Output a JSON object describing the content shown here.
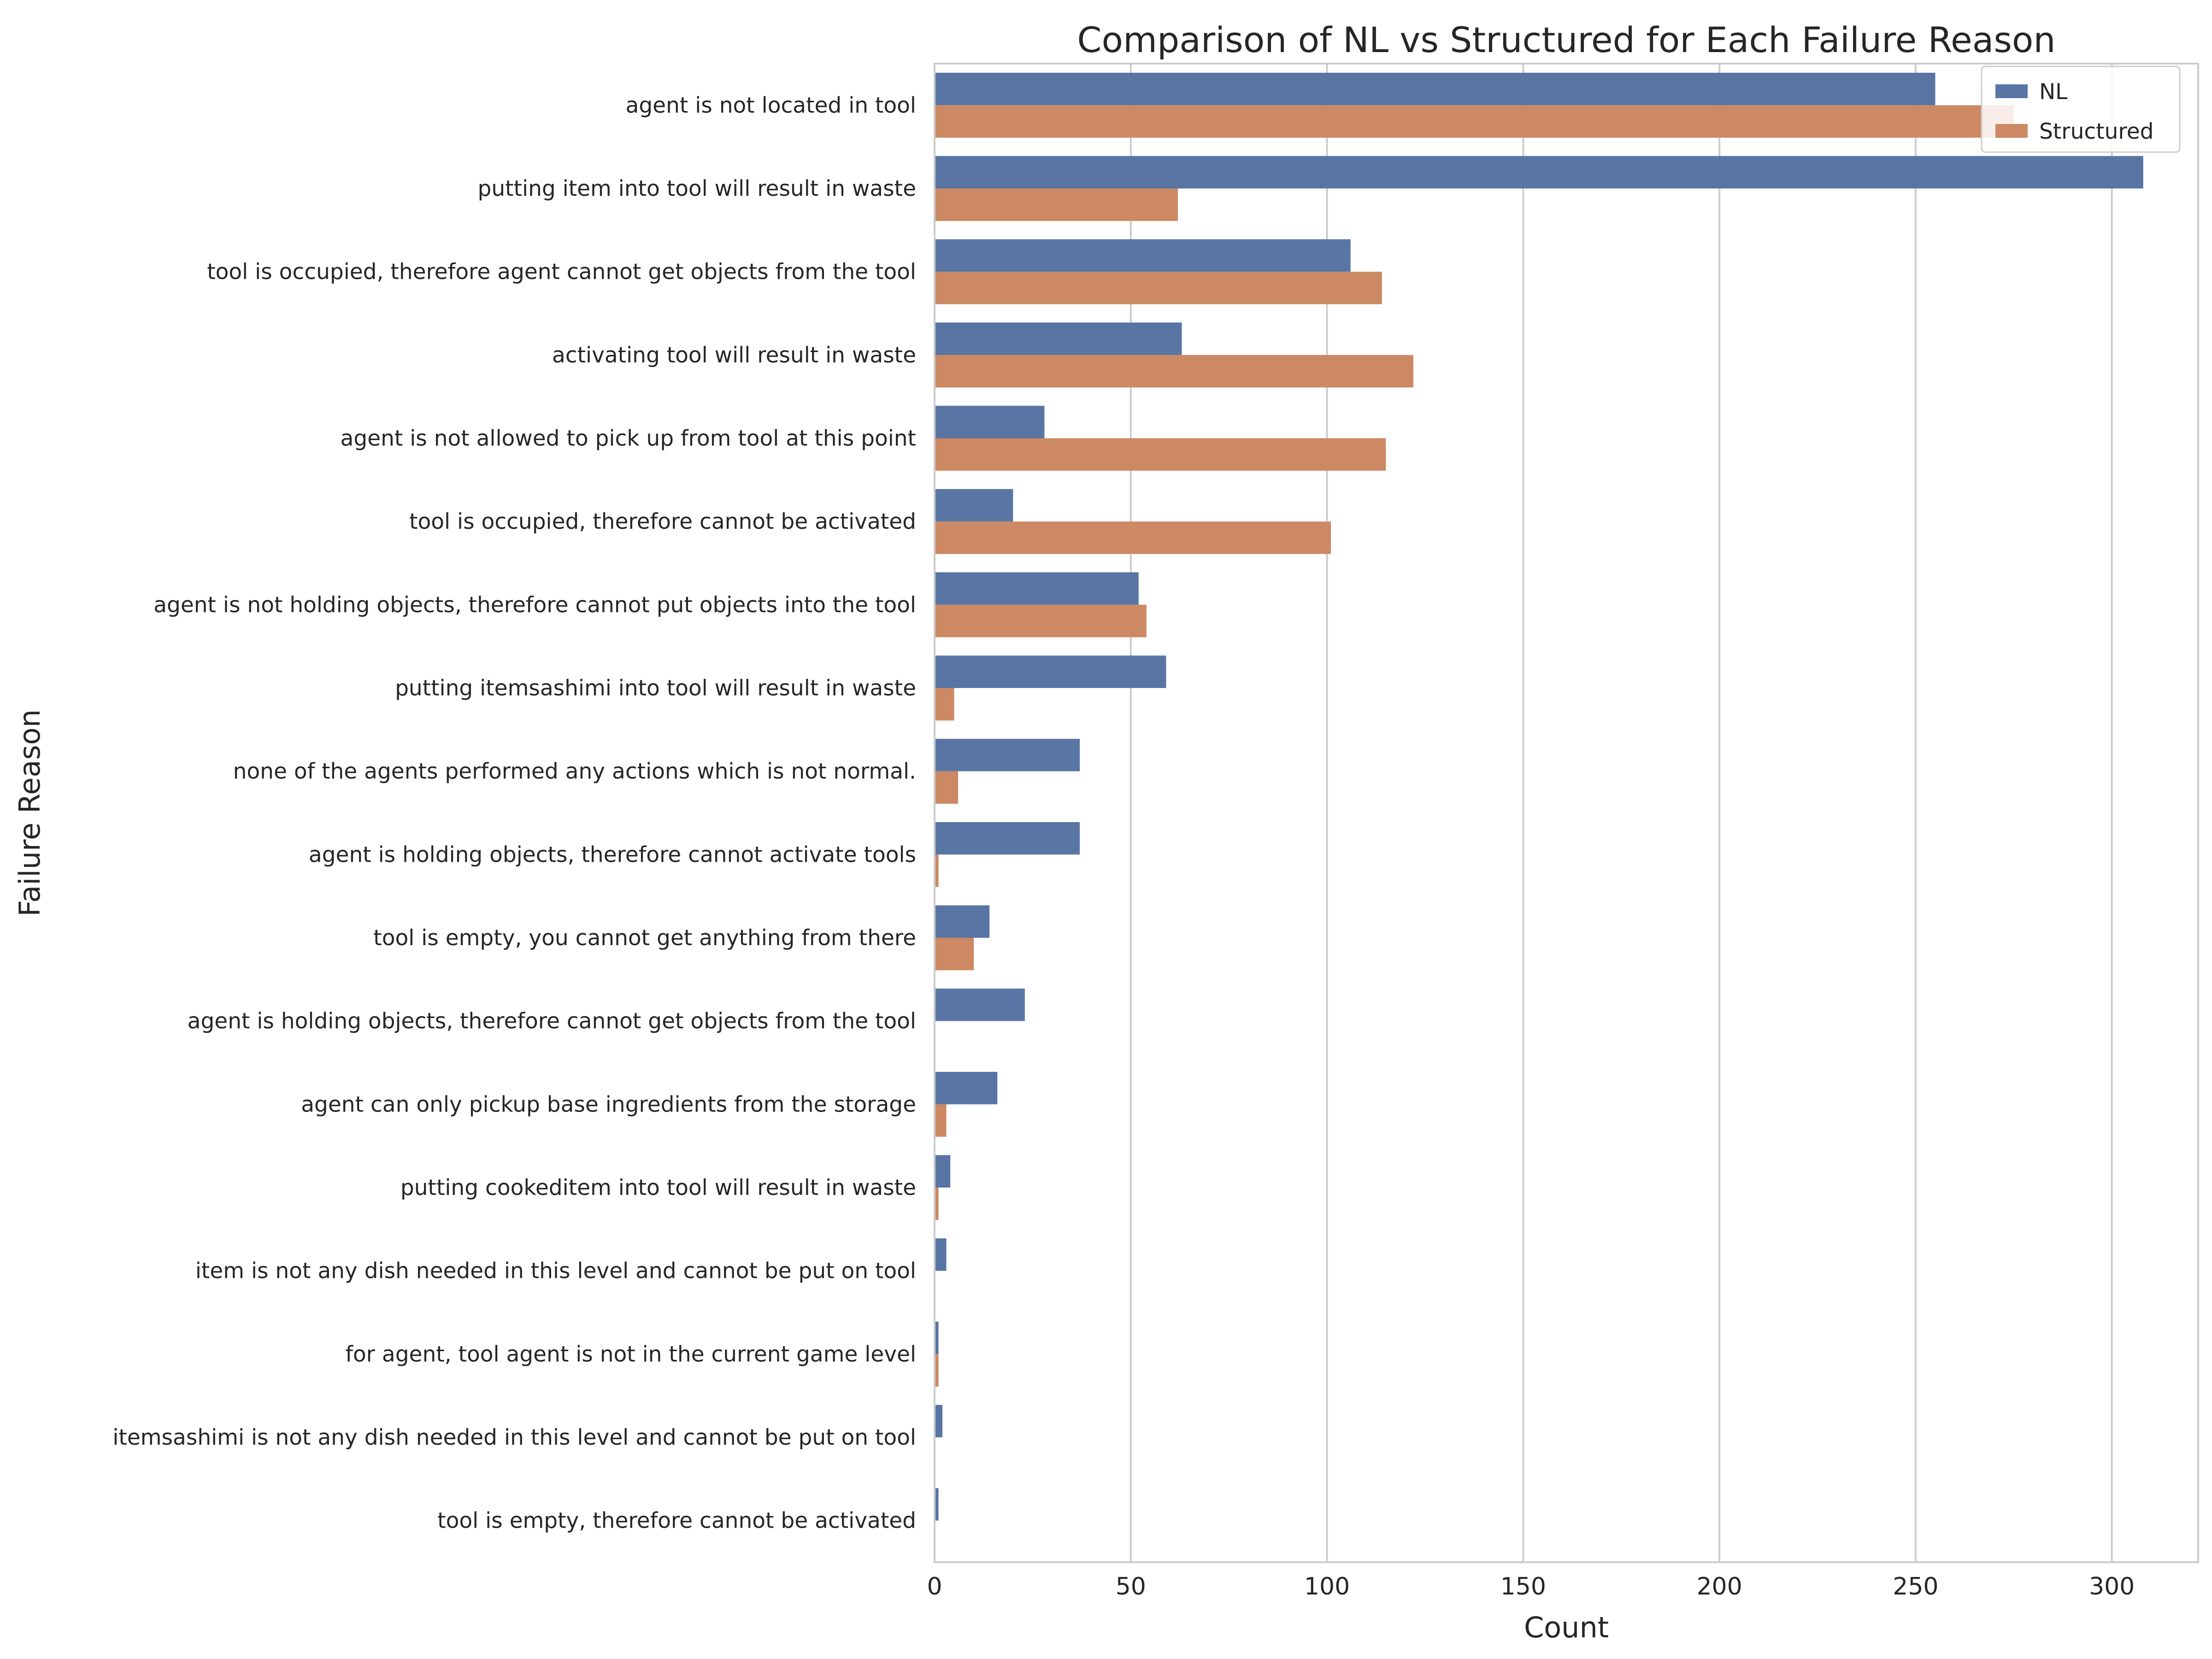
{
  "chart_data": {
    "type": "bar",
    "orientation": "horizontal",
    "title": "Comparison of NL vs Structured for Each Failure Reason",
    "xlabel": "Count",
    "ylabel": "Failure Reason",
    "xlim": [
      0,
      322
    ],
    "xticks": [
      0,
      50,
      100,
      150,
      200,
      250,
      300
    ],
    "grid": "vertical",
    "legend_position": "top-right",
    "categories": [
      "agent is not located in tool",
      "putting item into tool will result in waste",
      "tool is occupied, therefore agent cannot get objects from the tool",
      "activating tool will result in waste",
      "agent is not allowed to pick up from tool at this point",
      "tool is occupied, therefore cannot be activated",
      "agent is not holding objects, therefore cannot put objects into the tool",
      "putting itemsashimi into tool will result in waste",
      "none of the agents performed any actions which is not normal.",
      "agent is holding objects, therefore cannot activate tools",
      "tool is empty, you cannot get anything from there",
      "agent is holding objects, therefore cannot get objects from the tool",
      "agent can only pickup base ingredients from the storage",
      "putting cookeditem into tool will result in waste",
      "item is not any dish needed in this level and cannot be put on tool",
      "for agent, tool agent is not in the current game level",
      "itemsashimi is not any dish needed in this level and cannot be put on tool",
      "tool is empty, therefore cannot be activated"
    ],
    "series": [
      {
        "name": "NL",
        "color": "#5875a4",
        "values": [
          255,
          308,
          106,
          63,
          28,
          20,
          52,
          59,
          37,
          37,
          14,
          23,
          16,
          4,
          3,
          1,
          2,
          1
        ]
      },
      {
        "name": "Structured",
        "color": "#cc8963",
        "values": [
          275,
          62,
          114,
          122,
          115,
          101,
          54,
          5,
          6,
          1,
          10,
          0,
          3,
          1,
          0,
          1,
          0,
          0
        ]
      }
    ]
  }
}
